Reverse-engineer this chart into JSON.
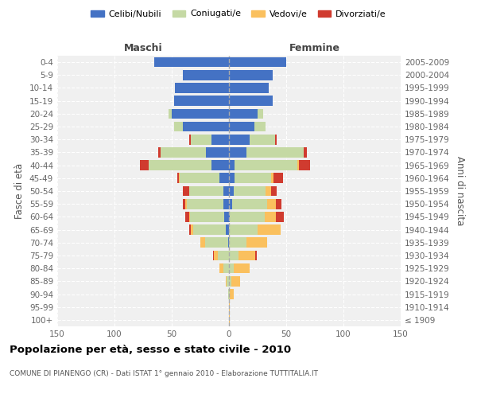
{
  "age_groups": [
    "100+",
    "95-99",
    "90-94",
    "85-89",
    "80-84",
    "75-79",
    "70-74",
    "65-69",
    "60-64",
    "55-59",
    "50-54",
    "45-49",
    "40-44",
    "35-39",
    "30-34",
    "25-29",
    "20-24",
    "15-19",
    "10-14",
    "5-9",
    "0-4"
  ],
  "birth_years": [
    "≤ 1909",
    "1910-1914",
    "1915-1919",
    "1920-1924",
    "1925-1929",
    "1930-1934",
    "1935-1939",
    "1940-1944",
    "1945-1949",
    "1950-1954",
    "1955-1959",
    "1960-1964",
    "1965-1969",
    "1970-1974",
    "1975-1979",
    "1980-1984",
    "1985-1989",
    "1990-1994",
    "1995-1999",
    "2000-2004",
    "2005-2009"
  ],
  "maschi": {
    "celibe": [
      0,
      0,
      0,
      0,
      0,
      0,
      1,
      3,
      4,
      5,
      5,
      8,
      15,
      20,
      15,
      40,
      50,
      48,
      47,
      40,
      65
    ],
    "coniugato": [
      0,
      0,
      1,
      2,
      5,
      10,
      20,
      28,
      30,
      32,
      30,
      35,
      55,
      40,
      18,
      8,
      3,
      0,
      0,
      0,
      0
    ],
    "vedovo": [
      0,
      0,
      0,
      1,
      3,
      3,
      4,
      2,
      1,
      1,
      0,
      1,
      0,
      0,
      0,
      0,
      0,
      0,
      0,
      0,
      0
    ],
    "divorziato": [
      0,
      0,
      0,
      0,
      0,
      1,
      0,
      2,
      3,
      2,
      5,
      1,
      8,
      2,
      2,
      0,
      0,
      0,
      0,
      0,
      0
    ]
  },
  "femmine": {
    "nubile": [
      0,
      0,
      0,
      0,
      0,
      0,
      0,
      0,
      1,
      3,
      4,
      5,
      5,
      15,
      18,
      22,
      25,
      38,
      35,
      38,
      50
    ],
    "coniugata": [
      0,
      0,
      1,
      2,
      4,
      8,
      15,
      25,
      30,
      30,
      28,
      32,
      55,
      50,
      22,
      10,
      5,
      0,
      0,
      0,
      0
    ],
    "vedova": [
      1,
      1,
      3,
      8,
      14,
      15,
      18,
      20,
      10,
      8,
      5,
      2,
      1,
      0,
      0,
      0,
      0,
      0,
      0,
      0,
      0
    ],
    "divorziata": [
      0,
      0,
      0,
      0,
      0,
      1,
      0,
      0,
      7,
      5,
      5,
      8,
      10,
      3,
      2,
      0,
      0,
      0,
      0,
      0,
      0
    ]
  },
  "colors": {
    "celibe": "#4472c4",
    "coniugato": "#c5d9a4",
    "vedovo": "#fac05e",
    "divorziato": "#d03b2f"
  },
  "xlim": 150,
  "title": "Popolazione per età, sesso e stato civile - 2010",
  "subtitle": "COMUNE DI PIANENGO (CR) - Dati ISTAT 1° gennaio 2010 - Elaborazione TUTTITALIA.IT",
  "ylabel_left": "Fasce di età",
  "ylabel_right": "Anni di nascita",
  "xlabel_left": "Maschi",
  "xlabel_right": "Femmine",
  "legend_labels": [
    "Celibi/Nubili",
    "Coniugati/e",
    "Vedovi/e",
    "Divorziati/e"
  ],
  "bg_color": "#f0f0f0"
}
